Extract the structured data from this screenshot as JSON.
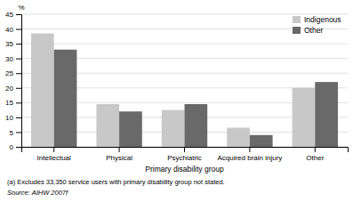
{
  "chart_data": {
    "type": "bar",
    "xlabel": "Primary disability group",
    "ylabel": "%",
    "categories": [
      "Intellectual",
      "Physical",
      "Psychiatric",
      "Acquired brain injury",
      "Other"
    ],
    "series": [
      {
        "name": "Indigenous",
        "color": "#c8c8c8",
        "values": [
          38.5,
          14.5,
          12.5,
          6.5,
          20.0
        ]
      },
      {
        "name": "Other",
        "color": "#696969",
        "values": [
          33.0,
          12.0,
          14.5,
          4.0,
          22.0
        ]
      }
    ],
    "ylim": [
      0,
      45
    ],
    "yticks": [
      0,
      5,
      10,
      15,
      20,
      25,
      30,
      35,
      40,
      45
    ],
    "grid": true,
    "legend": "upper right",
    "annotations": [
      "(a) Excludes 33,350 service users with primary disability group not stated.",
      "Source: AIHW 2007f"
    ]
  }
}
